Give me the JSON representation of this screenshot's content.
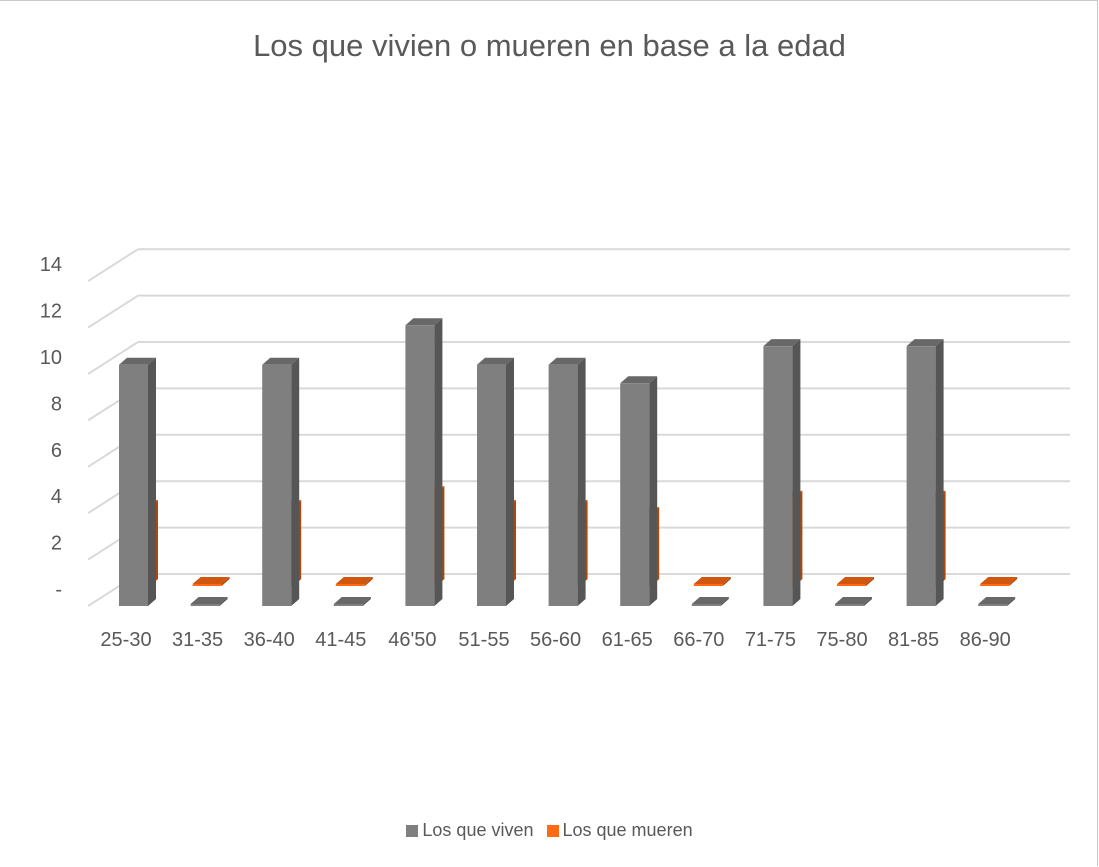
{
  "chart_data": {
    "type": "bar",
    "title": "Los que vivien o mueren en base a la edad",
    "categories": [
      "25-30",
      "31-35",
      "36-40",
      "41-45",
      "46'50",
      "51-55",
      "56-60",
      "61-65",
      "66-70",
      "71-75",
      "75-80",
      "81-85",
      "86-90"
    ],
    "y_tick_labels": [
      "-",
      "2",
      "4",
      "6",
      "8",
      "10",
      "12",
      "14"
    ],
    "ylim": [
      0,
      14
    ],
    "grid": true,
    "legend_position": "bottom",
    "series": [
      {
        "name": "Los que viven",
        "color": "#7f7f7f",
        "values": [
          10.4,
          0,
          10.4,
          0,
          12.1,
          10.4,
          10.4,
          9.6,
          0,
          11.2,
          0,
          11.2,
          0
        ]
      },
      {
        "name": "Los que mueren",
        "color": "#ff6a13",
        "values": [
          3.4,
          0,
          3.4,
          0,
          4.0,
          3.4,
          3.4,
          3.1,
          0,
          3.8,
          0,
          3.8,
          0
        ]
      }
    ]
  }
}
